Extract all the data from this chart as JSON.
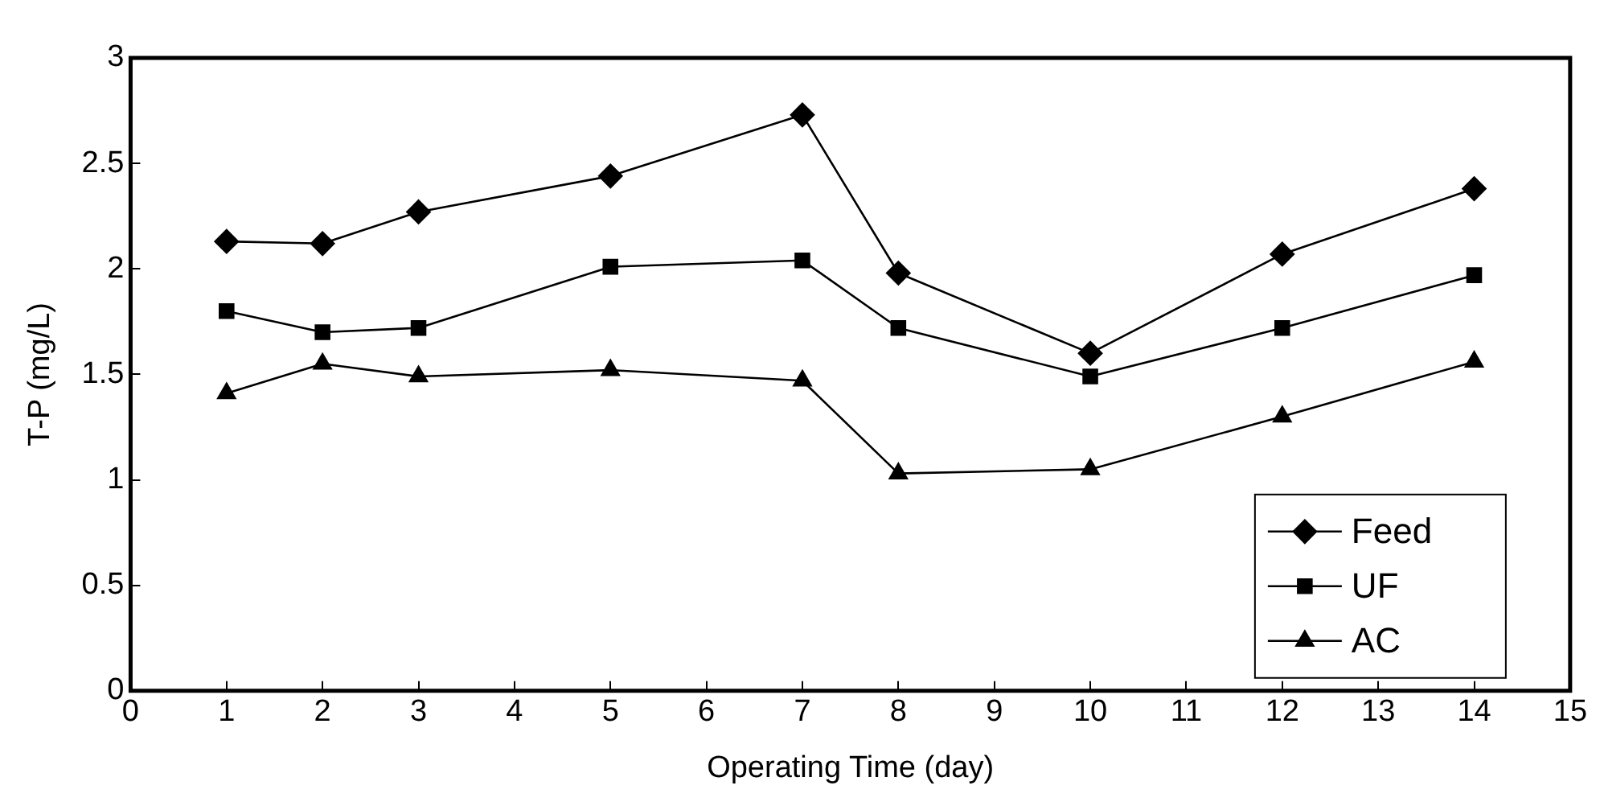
{
  "chart_data": {
    "type": "line",
    "xlabel": "Operating Time (day)",
    "ylabel": "T-P (mg/L)",
    "x": [
      1,
      2,
      3,
      5,
      7,
      8,
      10,
      12,
      14
    ],
    "series": [
      {
        "name": "Feed",
        "color": "#000000",
        "marker": "diamond",
        "values": [
          2.13,
          2.12,
          2.27,
          2.44,
          2.73,
          1.98,
          1.6,
          2.07,
          2.38
        ]
      },
      {
        "name": "UF",
        "color": "#000000",
        "marker": "square",
        "values": [
          1.8,
          1.7,
          1.72,
          2.01,
          2.04,
          1.72,
          1.49,
          1.72,
          1.97
        ]
      },
      {
        "name": "AC",
        "color": "#000000",
        "marker": "triangle",
        "values": [
          1.41,
          1.55,
          1.49,
          1.52,
          1.47,
          1.03,
          1.05,
          1.3,
          1.56
        ]
      }
    ],
    "xlim": [
      0,
      15
    ],
    "xticks": [
      0,
      1,
      2,
      3,
      4,
      5,
      6,
      7,
      8,
      9,
      10,
      11,
      12,
      13,
      14,
      15
    ],
    "ylim": [
      0,
      3
    ],
    "yticks": [
      0,
      0.5,
      1,
      1.5,
      2,
      2.5,
      3
    ],
    "legend": "bottom right",
    "grid": false,
    "line_style": "solid"
  }
}
